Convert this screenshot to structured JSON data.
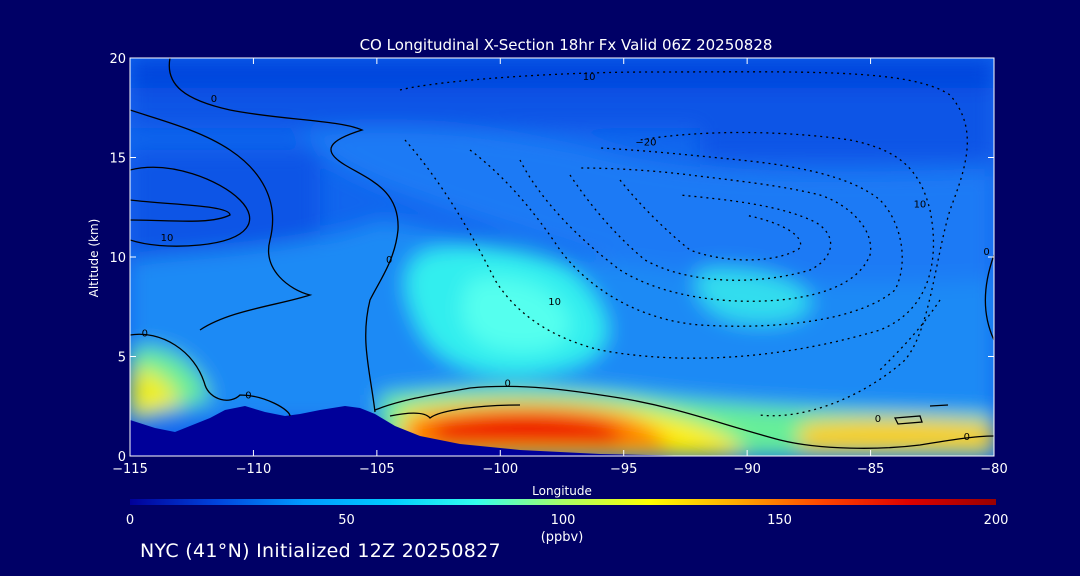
{
  "chart_data": {
    "type": "heatmap",
    "title": "CO Longitudinal X-Section 18hr  Fx Valid 06Z 20250828",
    "xlabel": "Longitude",
    "ylabel": "Altitude (km)",
    "xlim": [
      -115,
      -80
    ],
    "ylim": [
      0,
      20
    ],
    "xticks": [
      "-115",
      "-110",
      "-105",
      "-100",
      "-95",
      "-90",
      "-85",
      "-80"
    ],
    "yticks": [
      "0",
      "5",
      "10",
      "15",
      "20"
    ],
    "colorbar": {
      "range": [
        0,
        200
      ],
      "ticks": [
        "0",
        "50",
        "100",
        "150",
        "200"
      ],
      "unit": "(ppbv)",
      "colors": [
        "#000099",
        "#0044dd",
        "#0099ff",
        "#00ccff",
        "#33ffee",
        "#aaff66",
        "#ffff00",
        "#ffaa00",
        "#ff4400",
        "#dd0000",
        "#990000"
      ]
    },
    "contour_labels": [
      {
        "text": "10",
        "lon": -96.4,
        "alt": 18.9
      },
      {
        "text": "0",
        "lon": -111.6,
        "alt": 17.8
      },
      {
        "text": "-20",
        "lon": -94.1,
        "alt": 15.6
      },
      {
        "text": "10",
        "lon": -113.5,
        "alt": 10.8
      },
      {
        "text": "10",
        "lon": -83.0,
        "alt": 12.5
      },
      {
        "text": "0",
        "lon": -104.5,
        "alt": 9.7
      },
      {
        "text": "0",
        "lon": -80.3,
        "alt": 10.1
      },
      {
        "text": "10",
        "lon": -97.8,
        "alt": 7.6
      },
      {
        "text": "0",
        "lon": -114.4,
        "alt": 6.0
      },
      {
        "text": "0",
        "lon": -110.2,
        "alt": 2.9
      },
      {
        "text": "0",
        "lon": -99.7,
        "alt": 3.5
      },
      {
        "text": "0",
        "lon": -84.7,
        "alt": 1.7
      },
      {
        "text": "0",
        "lon": -81.1,
        "alt": 0.8
      }
    ]
  },
  "footer": "NYC (41°N) Initialized 12Z 20250827"
}
